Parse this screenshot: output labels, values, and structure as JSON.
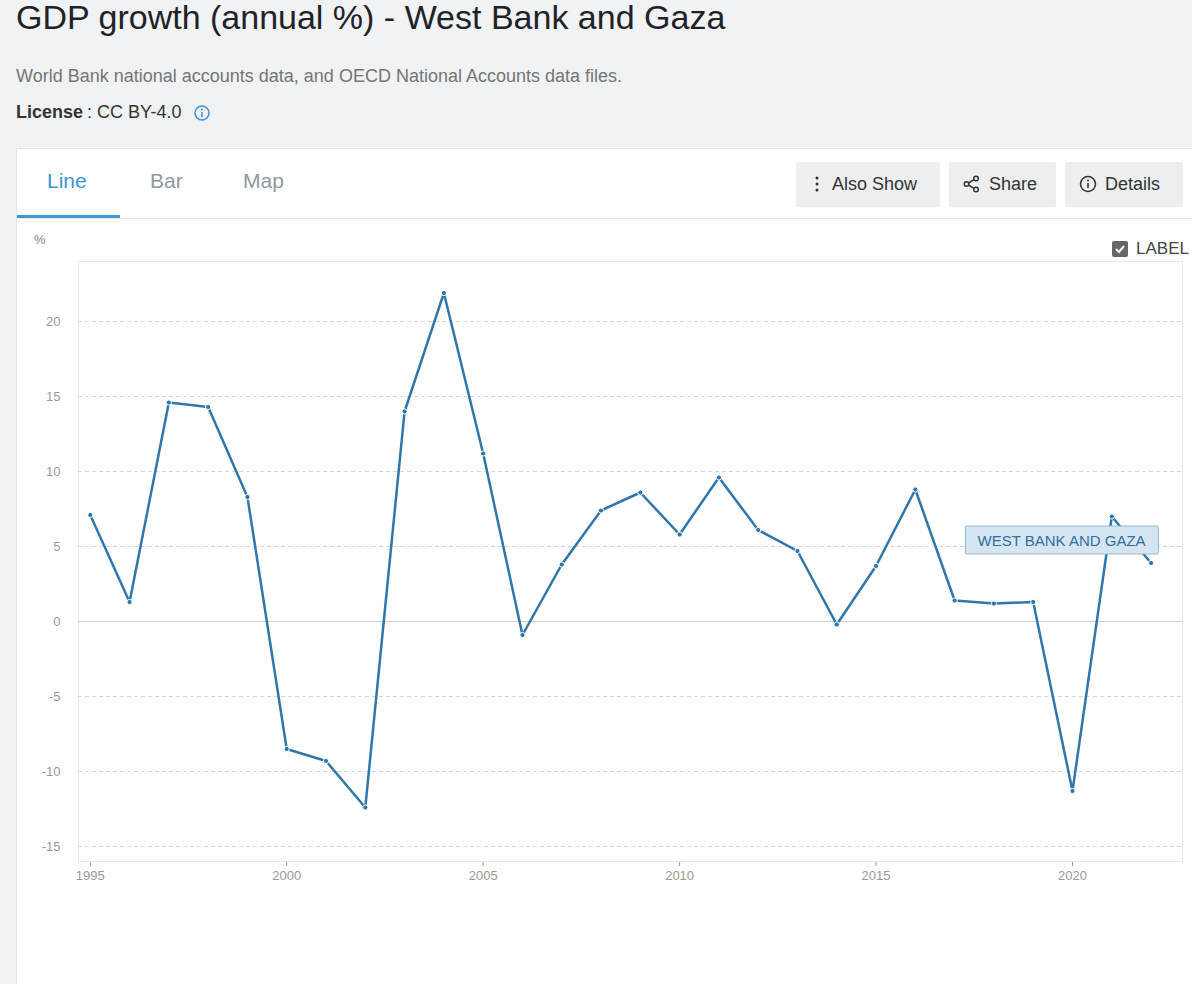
{
  "page": {
    "title": "GDP growth (annual %) - West Bank and Gaza",
    "subtitle": "World Bank national accounts data, and OECD National Accounts data files.",
    "license_label": "License",
    "license_value": ": CC BY-4.0",
    "tabs": [
      "Line",
      "Bar",
      "Map"
    ],
    "active_tab": "Line",
    "buttons": [
      "Also Show",
      "Share",
      "Details"
    ],
    "checkbox": "LABEL"
  },
  "chart_data": {
    "type": "line",
    "ylabel": "%",
    "x": [
      1995,
      1996,
      1997,
      1998,
      1999,
      2000,
      2001,
      2002,
      2003,
      2004,
      2005,
      2006,
      2007,
      2008,
      2009,
      2010,
      2011,
      2012,
      2013,
      2014,
      2015,
      2016,
      2017,
      2018,
      2019,
      2020,
      2021,
      2022
    ],
    "series": [
      {
        "name": "WEST BANK AND GAZA",
        "color": "#2f76ab",
        "marker": "circle",
        "values": [
          7.1,
          1.3,
          14.6,
          14.3,
          8.3,
          -8.5,
          -9.3,
          -12.4,
          14.0,
          21.9,
          11.2,
          -0.9,
          3.8,
          7.4,
          8.6,
          5.8,
          9.6,
          6.1,
          4.7,
          -0.2,
          3.7,
          8.8,
          1.4,
          1.2,
          1.3,
          -11.3,
          7.0,
          3.9
        ]
      }
    ],
    "xlim": [
      1994.7,
      2022.8
    ],
    "xticks": [
      1995,
      2000,
      2005,
      2010,
      2015,
      2020
    ],
    "ylim": [
      -16,
      24
    ],
    "yticks": [
      -15,
      -10,
      -5,
      0,
      5,
      10,
      15,
      20
    ],
    "grid": true
  }
}
